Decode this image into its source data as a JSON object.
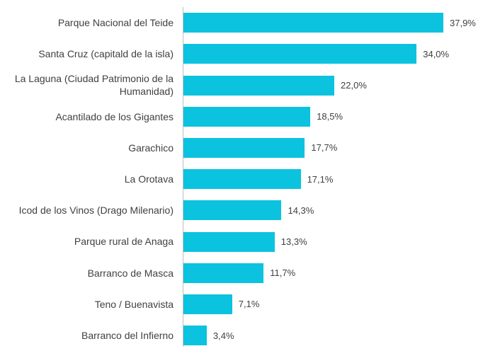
{
  "chart_data": {
    "type": "bar",
    "orientation": "horizontal",
    "color": "#0bc3df",
    "categories": [
      "Parque Nacional del Teide",
      "Santa Cruz (capitald de la isla)",
      "La Laguna (Ciudad Patrimonio de la Humanidad)",
      "Acantilado de los Gigantes",
      "Garachico",
      "La Orotava",
      "Icod de los Vinos (Drago Milenario)",
      "Parque rural de Anaga",
      "Barranco de Masca",
      "Teno / Buenavista",
      "Barranco del Infierno"
    ],
    "values": [
      37.9,
      34.0,
      22.0,
      18.5,
      17.7,
      17.1,
      14.3,
      13.3,
      11.7,
      7.1,
      3.4
    ],
    "value_labels": [
      "37,9%",
      "34,0%",
      "22,0%",
      "18,5%",
      "17,7%",
      "17,1%",
      "14,3%",
      "13,3%",
      "11,7%",
      "7,1%",
      "3,4%"
    ]
  }
}
